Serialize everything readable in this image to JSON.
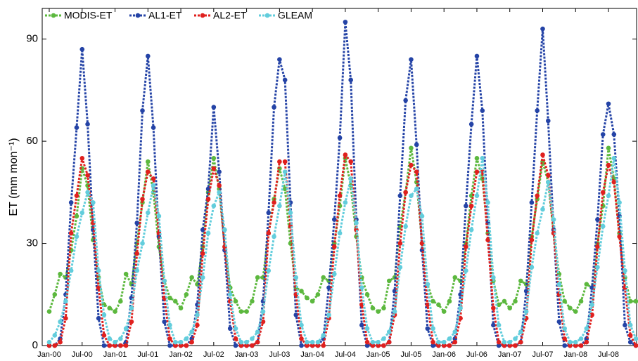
{
  "chart_data": {
    "type": "line",
    "y_label": "ET (mm mon⁻¹)",
    "categories": [
      "Jan-00",
      null,
      null,
      null,
      null,
      null,
      "Jul-00",
      null,
      null,
      null,
      null,
      null,
      "Jan-01",
      null,
      null,
      null,
      null,
      null,
      "Jul-01",
      null,
      null,
      null,
      null,
      null,
      "Jan-02",
      null,
      null,
      null,
      null,
      null,
      "Jul-02",
      null,
      null,
      null,
      null,
      null,
      "Jan-03",
      null,
      null,
      null,
      null,
      null,
      "Jul-03",
      null,
      null,
      null,
      null,
      null,
      "Jan-04",
      null,
      null,
      null,
      null,
      null,
      "Jul-04",
      null,
      null,
      null,
      null,
      null,
      "Jan-05",
      null,
      null,
      null,
      null,
      null,
      "Jul-05",
      null,
      null,
      null,
      null,
      null,
      "Jan-06",
      null,
      null,
      null,
      null,
      null,
      "Jul-06",
      null,
      null,
      null,
      null,
      null,
      "Jan-07",
      null,
      null,
      null,
      null,
      null,
      "Jul-07",
      null,
      null,
      null,
      null,
      null,
      "Jan-08",
      null,
      null,
      null,
      null,
      null,
      "Jul-08",
      null,
      null,
      null,
      null,
      null
    ],
    "ylim": [
      0,
      99
    ],
    "yticks": [
      0,
      30,
      60,
      90
    ],
    "legend": "upper-left",
    "series": [
      {
        "name": "MODIS-ET",
        "color": "#5cb83e",
        "values": [
          10,
          15,
          21,
          20,
          28,
          38,
          52,
          47,
          31,
          20,
          12,
          11,
          10,
          13,
          21,
          18,
          30,
          42,
          54,
          45,
          29,
          19,
          14,
          13,
          11,
          15,
          20,
          18,
          29,
          45,
          55,
          46,
          29,
          17,
          13,
          10,
          10,
          13,
          20,
          20,
          33,
          43,
          52,
          46,
          30,
          17,
          16,
          14,
          13,
          15,
          20,
          19,
          30,
          41,
          55,
          47,
          32,
          20,
          15,
          11,
          10,
          11,
          19,
          20,
          35,
          45,
          58,
          48,
          30,
          18,
          13,
          12,
          10,
          13,
          20,
          19,
          30,
          44,
          55,
          49,
          33,
          19,
          12,
          13,
          11,
          13,
          19,
          18,
          32,
          43,
          54,
          48,
          33,
          21,
          13,
          11,
          10,
          13,
          18,
          17,
          30,
          41,
          58,
          49,
          33,
          20,
          13,
          13
        ]
      },
      {
        "name": "AL1-ET",
        "color": "#2443a6",
        "values": [
          0,
          0,
          2,
          15,
          42,
          64,
          87,
          65,
          34,
          8,
          0,
          0,
          0,
          0,
          1,
          14,
          36,
          69,
          85,
          64,
          32,
          7,
          0,
          0,
          0,
          0,
          2,
          12,
          34,
          46,
          70,
          51,
          28,
          5,
          0,
          0,
          0,
          0,
          1,
          13,
          39,
          70,
          84,
          78,
          42,
          9,
          0,
          0,
          0,
          0,
          2,
          17,
          37,
          61,
          95,
          78,
          37,
          6,
          0,
          0,
          0,
          0,
          1,
          16,
          44,
          72,
          84,
          59,
          28,
          5,
          0,
          0,
          0,
          0,
          2,
          15,
          41,
          65,
          85,
          69,
          36,
          6,
          0,
          0,
          0,
          0,
          1,
          16,
          42,
          69,
          93,
          66,
          34,
          7,
          0,
          0,
          0,
          0,
          2,
          17,
          37,
          62,
          71,
          62,
          38,
          6,
          1,
          0
        ]
      },
      {
        "name": "AL2-ET",
        "color": "#e0201e",
        "values": [
          0,
          0,
          1,
          8,
          33,
          44,
          55,
          50,
          36,
          17,
          3,
          0,
          0,
          0,
          0,
          7,
          27,
          43,
          51,
          49,
          33,
          14,
          2,
          0,
          0,
          0,
          1,
          6,
          27,
          43,
          52,
          47,
          29,
          13,
          2,
          0,
          0,
          0,
          1,
          7,
          33,
          42,
          54,
          54,
          35,
          15,
          2,
          0,
          0,
          0,
          0,
          8,
          29,
          44,
          56,
          54,
          34,
          12,
          1,
          0,
          0,
          0,
          1,
          9,
          30,
          45,
          53,
          51,
          30,
          12,
          1,
          0,
          0,
          0,
          1,
          8,
          29,
          41,
          51,
          51,
          31,
          11,
          1,
          0,
          0,
          0,
          1,
          8,
          31,
          44,
          56,
          50,
          33,
          15,
          2,
          0,
          0,
          0,
          1,
          9,
          29,
          45,
          53,
          48,
          32,
          17,
          3,
          0
        ]
      },
      {
        "name": "GLEAM",
        "color": "#62cddc",
        "values": [
          1,
          3,
          7,
          13,
          22,
          32,
          39,
          45,
          42,
          22,
          9,
          2,
          1,
          2,
          5,
          11,
          22,
          30,
          39,
          47,
          38,
          19,
          6,
          1,
          1,
          2,
          4,
          9,
          20,
          33,
          41,
          45,
          34,
          15,
          5,
          1,
          1,
          2,
          4,
          10,
          22,
          32,
          41,
          51,
          39,
          20,
          6,
          1,
          1,
          1,
          3,
          9,
          21,
          33,
          42,
          49,
          36,
          17,
          5,
          1,
          1,
          2,
          4,
          10,
          23,
          35,
          44,
          46,
          38,
          18,
          5,
          1,
          1,
          2,
          4,
          11,
          22,
          34,
          44,
          55,
          42,
          20,
          6,
          1,
          1,
          2,
          4,
          10,
          23,
          33,
          40,
          48,
          37,
          18,
          5,
          1,
          1,
          2,
          5,
          12,
          23,
          35,
          44,
          55,
          42,
          22,
          6,
          2
        ]
      }
    ]
  }
}
